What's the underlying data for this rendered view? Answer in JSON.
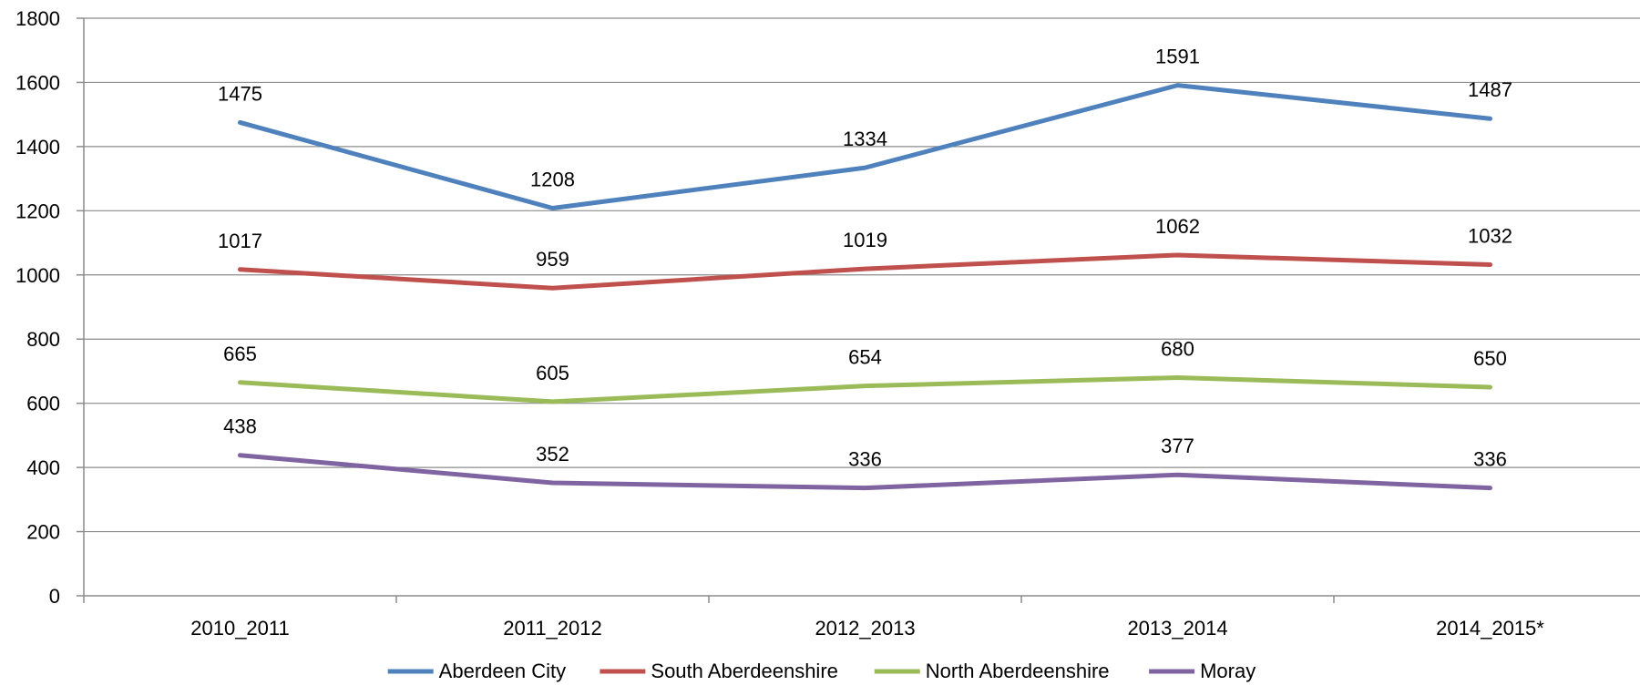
{
  "chart_data": {
    "type": "line",
    "categories": [
      "2010_2011",
      "2011_2012",
      "2012_2013",
      "2013_2014",
      "2014_2015*"
    ],
    "series": [
      {
        "name": "Aberdeen City",
        "color": "#4f81bd",
        "values": [
          1475,
          1208,
          1334,
          1591,
          1487
        ]
      },
      {
        "name": "South Aberdeenshire",
        "color": "#c0504d",
        "values": [
          1017,
          959,
          1019,
          1062,
          1032
        ]
      },
      {
        "name": "North Aberdeenshire",
        "color": "#9bbb59",
        "values": [
          665,
          605,
          654,
          680,
          650
        ]
      },
      {
        "name": "Moray",
        "color": "#8064a2",
        "values": [
          438,
          352,
          336,
          377,
          336
        ]
      }
    ],
    "yticks": [
      0,
      200,
      400,
      600,
      800,
      1000,
      1200,
      1400,
      1600,
      1800
    ],
    "ylim": [
      0,
      1800
    ],
    "grid": true,
    "legend_position": "bottom",
    "data_labels": true,
    "title": "",
    "xlabel": "",
    "ylabel": ""
  }
}
